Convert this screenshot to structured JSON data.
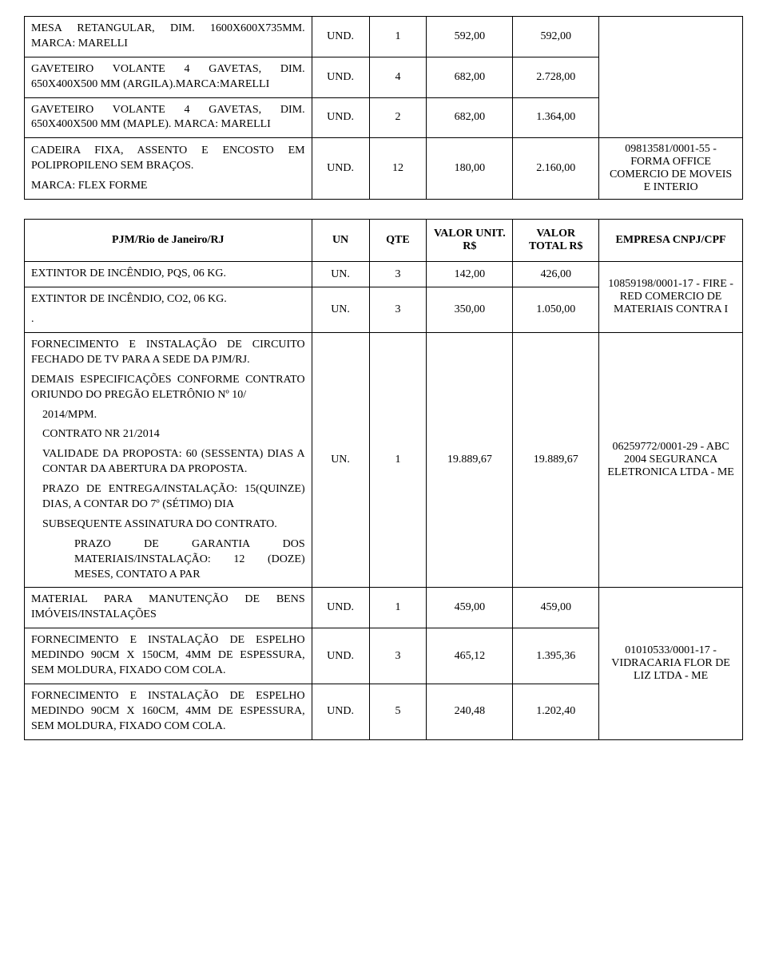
{
  "table1": {
    "col_widths": [
      "40%",
      "8%",
      "8%",
      "12%",
      "12%",
      "20%"
    ],
    "rows": [
      {
        "desc_parts": [
          "MESA RETANGULAR, DIM. 1600X600X735MM. MARCA: MARELLI"
        ],
        "un": "UND.",
        "qte": "1",
        "unit": "592,00",
        "total": "592,00",
        "rowspan_emp": 4,
        "emp": ""
      },
      {
        "desc_parts": [
          "GAVETEIRO VOLANTE 4 GAVETAS, DIM. 650X400X500 MM (ARGILA).MARCA:MARELLI"
        ],
        "un": "UND.",
        "qte": "4",
        "unit": "682,00",
        "total": "2.728,00"
      },
      {
        "desc_parts": [
          "GAVETEIRO VOLANTE 4 GAVETAS, DIM. 650X400X500 MM (MAPLE). MARCA: MARELLI"
        ],
        "un": "UND.",
        "qte": "2",
        "unit": "682,00",
        "total": "1.364,00"
      },
      {
        "desc_parts": [
          "CADEIRA FIXA, ASSENTO E ENCOSTO EM POLIPROPILENO SEM BRAÇOS.",
          " MARCA: FLEX FORME"
        ],
        "un": "UND.",
        "qte": "12",
        "unit": "180,00",
        "total": "2.160,00",
        "emp_override": "09813581/0001-55 - FORMA OFFICE COMERCIO DE MOVEIS E INTERIO"
      }
    ]
  },
  "table2": {
    "col_widths": [
      "40%",
      "8%",
      "8%",
      "12%",
      "12%",
      "20%"
    ],
    "header": {
      "desc": "PJM/Rio de Janeiro/RJ",
      "un": "UN",
      "qte": "QTE",
      "unit": "VALOR UNIT. R$",
      "total": "VALOR TOTAL R$",
      "emp": "EMPRESA CNPJ/CPF"
    },
    "groups": [
      {
        "emp": "10859198/0001-17 - FIRE - RED COMERCIO DE MATERIAIS CONTRA I",
        "rows": [
          {
            "desc_parts": [
              "EXTINTOR DE INCÊNDIO, PQS, 06 KG."
            ],
            "un": "UN.",
            "qte": "3",
            "unit": "142,00",
            "total": "426,00"
          },
          {
            "desc_parts": [
              "EXTINTOR DE INCÊNDIO, CO2, 06 KG.",
              "."
            ],
            "un": "UN.",
            "qte": "3",
            "unit": "350,00",
            "total": "1.050,00"
          }
        ]
      },
      {
        "emp": "06259772/0001-29 - ABC 2004 SEGURANCA ELETRONICA LTDA - ME",
        "rows": [
          {
            "desc_complex": [
              {
                "indent": 0,
                "text": "FORNECIMENTO E INSTALAÇÃO DE CIRCUITO FECHADO DE TV PARA A SEDE DA PJM/RJ."
              },
              {
                "indent": 0,
                "text": "DEMAIS ESPECIFICAÇÕES CONFORME CONTRATO ORIUNDO DO PREGÃO ELETRÔNIO Nº 10/"
              },
              {
                "indent": 1,
                "text": "2014/MPM."
              },
              {
                "indent": 1,
                "text": "CONTRATO NR 21/2014"
              },
              {
                "indent": 1,
                "text": "VALIDADE DA PROPOSTA: 60 (SESSENTA) DIAS A CONTAR DA ABERTURA DA PROPOSTA."
              },
              {
                "indent": 1,
                "text": "PRAZO DE ENTREGA/INSTALAÇÃO: 15(QUINZE) DIAS, A CONTAR DO 7º (SÉTIMO) DIA"
              },
              {
                "indent": 1,
                "text": "SUBSEQUENTE ASSINATURA DO CONTRATO."
              },
              {
                "indent": 2,
                "text": "PRAZO DE GARANTIA DOS MATERIAIS/INSTALAÇÃO: 12 (DOZE) MESES, CONTATO A PAR"
              }
            ],
            "un": "UN.",
            "qte": "1",
            "unit": "19.889,67",
            "total": "19.889,67"
          }
        ]
      },
      {
        "emp": "01010533/0001-17 - VIDRACARIA FLOR DE LIZ LTDA - ME",
        "rows": [
          {
            "desc_parts": [
              "MATERIAL PARA MANUTENÇÃO DE BENS IMÓVEIS/INSTALAÇÕES"
            ],
            "un": "UND.",
            "qte": "1",
            "unit": "459,00",
            "total": "459,00"
          },
          {
            "desc_parts": [
              "FORNECIMENTO E INSTALAÇÃO DE ESPELHO MEDINDO 90CM X 150CM, 4MM DE ESPESSURA, SEM MOLDURA, FIXADO COM COLA."
            ],
            "un": "UND.",
            "qte": "3",
            "unit": "465,12",
            "total": "1.395,36"
          },
          {
            "desc_parts": [
              "FORNECIMENTO E INSTALAÇÃO DE ESPELHO MEDINDO 90CM X 160CM, 4MM DE ESPESSURA, SEM MOLDURA, FIXADO COM COLA."
            ],
            "un": "UND.",
            "qte": "5",
            "unit": "240,48",
            "total": "1.202,40"
          }
        ]
      }
    ]
  }
}
